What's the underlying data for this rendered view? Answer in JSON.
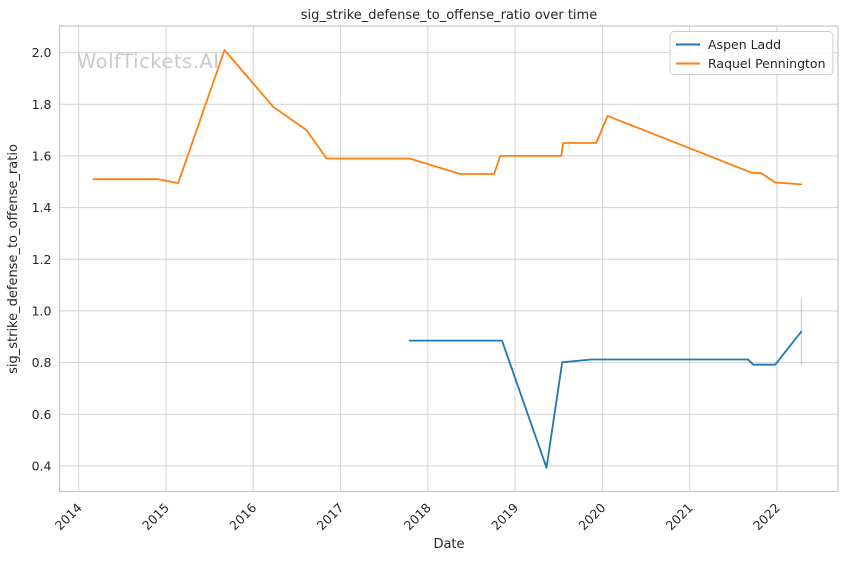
{
  "watermark": "WolfTickets.AI",
  "colors": {
    "background": "#ffffff",
    "grid": "#d2d2d2",
    "spine": "#c6c6c6",
    "text": "#262626",
    "watermark": "#c9c9c9",
    "legend_border": "#cccccc",
    "series_blue": "#1f77b4",
    "series_orange": "#ff7f0e"
  },
  "chart_data": {
    "type": "line",
    "title": "sig_strike_defense_to_offense_ratio over time",
    "xlabel": "Date",
    "ylabel": "sig_strike_defense_to_offense_ratio",
    "grid": true,
    "legend_position": "upper-right",
    "x_ticks": [
      2014,
      2015,
      2016,
      2017,
      2018,
      2019,
      2020,
      2021,
      2022
    ],
    "y_ticks": [
      0.4,
      0.6,
      0.8,
      1.0,
      1.2,
      1.4,
      1.6,
      1.8,
      2.0
    ],
    "x_range": [
      2013.78,
      2022.7
    ],
    "y_range": [
      0.301,
      2.103
    ],
    "series": [
      {
        "name": "Aspen Ladd",
        "color": "#1f77b4",
        "x": [
          2017.79,
          2018.85,
          2019.36,
          2019.54,
          2019.87,
          2021.67,
          2021.73,
          2021.98,
          2022.28
        ],
        "y": [
          0.885,
          0.885,
          0.393,
          0.801,
          0.812,
          0.812,
          0.792,
          0.792,
          0.92
        ]
      },
      {
        "name": "Raquel Pennington",
        "color": "#ff7f0e",
        "x": [
          2014.17,
          2014.91,
          2015.14,
          2015.67,
          2016.23,
          2016.61,
          2016.84,
          2017.79,
          2018.37,
          2018.76,
          2018.83,
          2019.53,
          2019.55,
          2019.93,
          2020.06,
          2021.71,
          2021.82,
          2021.98,
          2022.28
        ],
        "y": [
          1.51,
          1.51,
          1.495,
          2.01,
          1.79,
          1.7,
          1.59,
          1.59,
          1.53,
          1.53,
          1.6,
          1.6,
          1.65,
          1.65,
          1.755,
          1.535,
          1.533,
          1.497,
          1.49
        ]
      }
    ],
    "annotations": [
      {
        "type": "vertical-line",
        "label": "aspen-ladd-endpoint-range",
        "x": 2022.28,
        "y_from": 0.792,
        "y_to": 1.05,
        "color": "#1f77b4",
        "opacity": 0.3
      }
    ]
  }
}
